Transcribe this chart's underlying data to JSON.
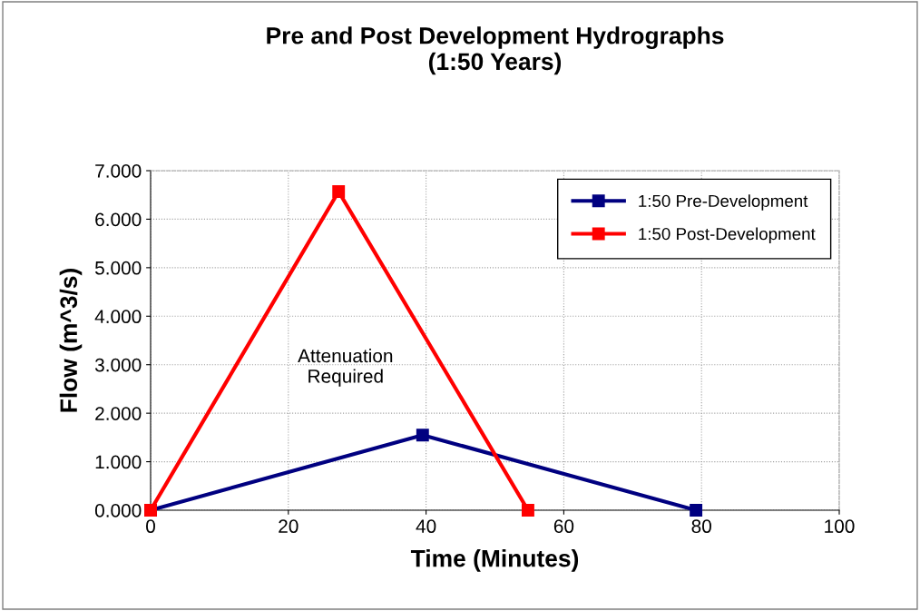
{
  "chart_data": {
    "type": "line",
    "title": "Pre and Post Development Hydrographs\n(1:50 Years)",
    "xlabel": "Time (Minutes)",
    "ylabel": "Flow (m^3/s)",
    "series": [
      {
        "name": "1:50 Pre-Development",
        "color": "#000080",
        "x": [
          0,
          39.5,
          79.2
        ],
        "values": [
          0,
          1.55,
          0
        ]
      },
      {
        "name": "1:50 Post-Development",
        "color": "#ff0000",
        "x": [
          0,
          27.3,
          54.8
        ],
        "values": [
          0,
          6.57,
          0
        ]
      }
    ],
    "annotations": [
      "Attenuation\nRequired"
    ],
    "xlim": [
      0,
      100
    ],
    "xticks": [
      0,
      20,
      40,
      60,
      80,
      100
    ],
    "ylim": [
      0,
      7
    ],
    "yticks": [
      {
        "value": 0,
        "label": "0.000"
      },
      {
        "value": 1,
        "label": "1.000"
      },
      {
        "value": 2,
        "label": "2.000"
      },
      {
        "value": 3,
        "label": "3.000"
      },
      {
        "value": 4,
        "label": "4.000"
      },
      {
        "value": 5,
        "label": "5.000"
      },
      {
        "value": 6,
        "label": "6.000"
      },
      {
        "value": 7,
        "label": "7.000"
      }
    ],
    "grid": true,
    "legend": "top right",
    "marker": "square",
    "line_style": "solid"
  }
}
